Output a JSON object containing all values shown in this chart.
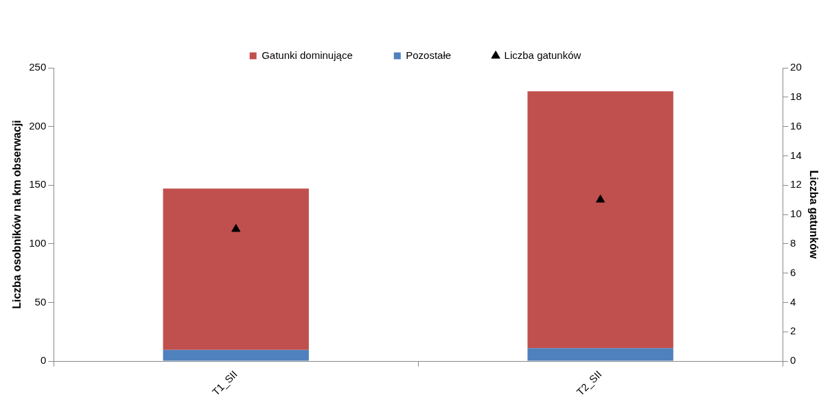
{
  "chart_data": {
    "type": "bar",
    "stacked": true,
    "categories": [
      "T1_SII",
      "T2_SII"
    ],
    "series": [
      {
        "name": "Pozostałe",
        "color": "#4f81bd",
        "values": [
          9.5,
          11
        ]
      },
      {
        "name": "Gatunki dominujące",
        "color": "#c0504d",
        "values": [
          137.5,
          219
        ]
      },
      {
        "name": "Liczba gatunków",
        "type": "scatter",
        "axis": "y2",
        "color": "#000000",
        "marker": "triangle",
        "x": [
          "T1_SII",
          "T2_SII"
        ],
        "values": [
          9,
          11
        ]
      }
    ],
    "ylabel": "Liczba osobników na km obserwacji",
    "y2label": "Liczba gatunków",
    "ylim": [
      0,
      250
    ],
    "yticks": [
      0,
      50,
      100,
      150,
      200,
      250
    ],
    "y2lim": [
      0,
      20
    ],
    "y2ticks": [
      0,
      2,
      4,
      6,
      8,
      10,
      12,
      14,
      16,
      18,
      20
    ],
    "grid": false,
    "legend": "top"
  }
}
